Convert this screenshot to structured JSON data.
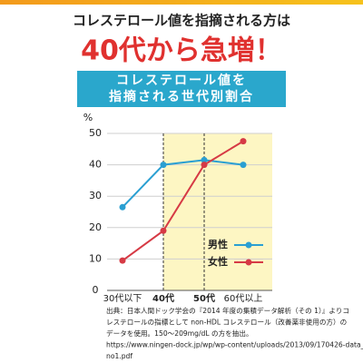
{
  "header": {
    "title": "コレステロール値を指摘される方は",
    "headline": "40代から急増！"
  },
  "chart_data": {
    "type": "line",
    "title_lines": [
      "コレステロール値を",
      "指摘される世代別割合"
    ],
    "y_label": "%",
    "categories": [
      "30代以下",
      "40代",
      "50代",
      "60代以上"
    ],
    "series": [
      {
        "name": "男性",
        "color": "#2a9fd2",
        "values": [
          26.5,
          40,
          41.5,
          40
        ]
      },
      {
        "name": "女性",
        "color": "#d63a45",
        "values": [
          9.5,
          19,
          40,
          47.5
        ]
      }
    ],
    "ylim": [
      0,
      50
    ],
    "yticks": [
      0,
      10,
      20,
      30,
      40,
      50
    ],
    "grid": true,
    "legend": "lower-right"
  },
  "footnote": [
    "出典：日本人間ドック学会の『2014 年度の集積データ解析（その 1）』よりコ",
    "レステロールの指標として non-HDL コレステロール（改善薬非使用の方）の",
    "データを使用。150～209mg/dL の方を抽出。",
    "https://www.ningen-dock.jp/wp/wp-content/uploads/2013/09/170426-data_",
    "no1.pdf"
  ]
}
